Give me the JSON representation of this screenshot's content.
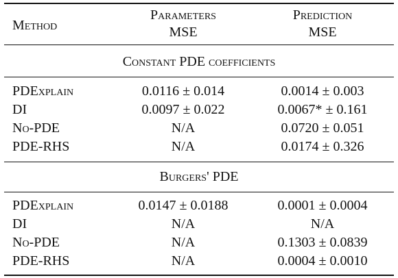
{
  "header": {
    "method": "Method",
    "parameters": [
      "Parameters",
      "MSE"
    ],
    "prediction": [
      "Prediction",
      "MSE"
    ]
  },
  "sections": [
    {
      "title": "Constant PDE coefficients",
      "rows": [
        [
          "PDExplain",
          "0.0116 ± 0.014",
          "0.0014 ± 0.003"
        ],
        [
          "DI",
          "0.0097 ± 0.022",
          "0.0067* ± 0.161"
        ],
        [
          "No-PDE",
          "N/A",
          "0.0720 ± 0.051"
        ],
        [
          "PDE-RHS",
          "N/A",
          "0.0174 ± 0.326"
        ]
      ]
    },
    {
      "title": "Burgers' PDE",
      "rows": [
        [
          "PDExplain",
          "0.0147 ± 0.0188",
          "0.0001 ± 0.0004"
        ],
        [
          "DI",
          "N/A",
          "N/A"
        ],
        [
          "No-PDE",
          "N/A",
          "0.1303 ± 0.0839"
        ],
        [
          "PDE-RHS",
          "N/A",
          "0.0004 ± 0.0010"
        ]
      ]
    }
  ]
}
